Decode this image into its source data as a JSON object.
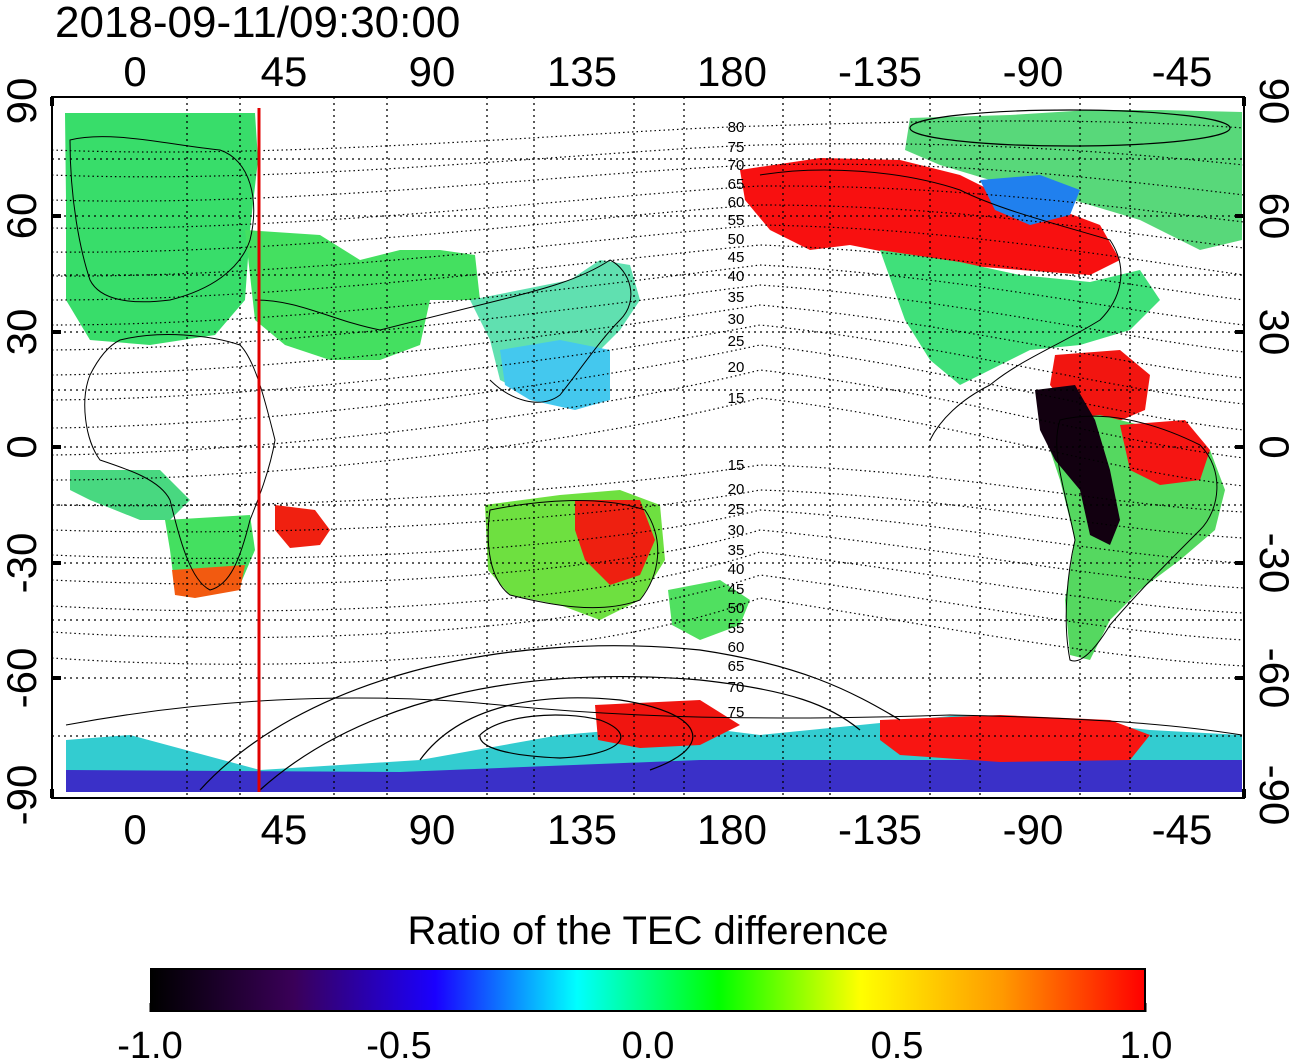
{
  "timestamp": "2018-09-11/09:30:00",
  "colorbar": {
    "title": "Ratio of the TEC difference",
    "ticks": [
      "-1.0",
      "-0.5",
      "0.0",
      "0.5",
      "1.0"
    ],
    "stops": [
      "#000000",
      "#3a0058",
      "#1a00ff",
      "#00ffff",
      "#00ff00",
      "#ffff00",
      "#ff9900",
      "#ff0000"
    ]
  },
  "axes": {
    "lon_ticks": [
      "0",
      "45",
      "90",
      "135",
      "180",
      "-135",
      "-90",
      "-45"
    ],
    "lat_ticks": [
      "90",
      "60",
      "30",
      "0",
      "-30",
      "-60",
      "-90"
    ]
  },
  "contour_labels": {
    "north": [
      "80",
      "75",
      "70",
      "65",
      "60",
      "55",
      "50",
      "45",
      "40",
      "35",
      "30",
      "25",
      "20",
      "15"
    ],
    "south": [
      "15",
      "20",
      "25",
      "30",
      "35",
      "40",
      "45",
      "50",
      "55",
      "60",
      "65",
      "70",
      "75"
    ]
  },
  "terminator_lon": 39
}
